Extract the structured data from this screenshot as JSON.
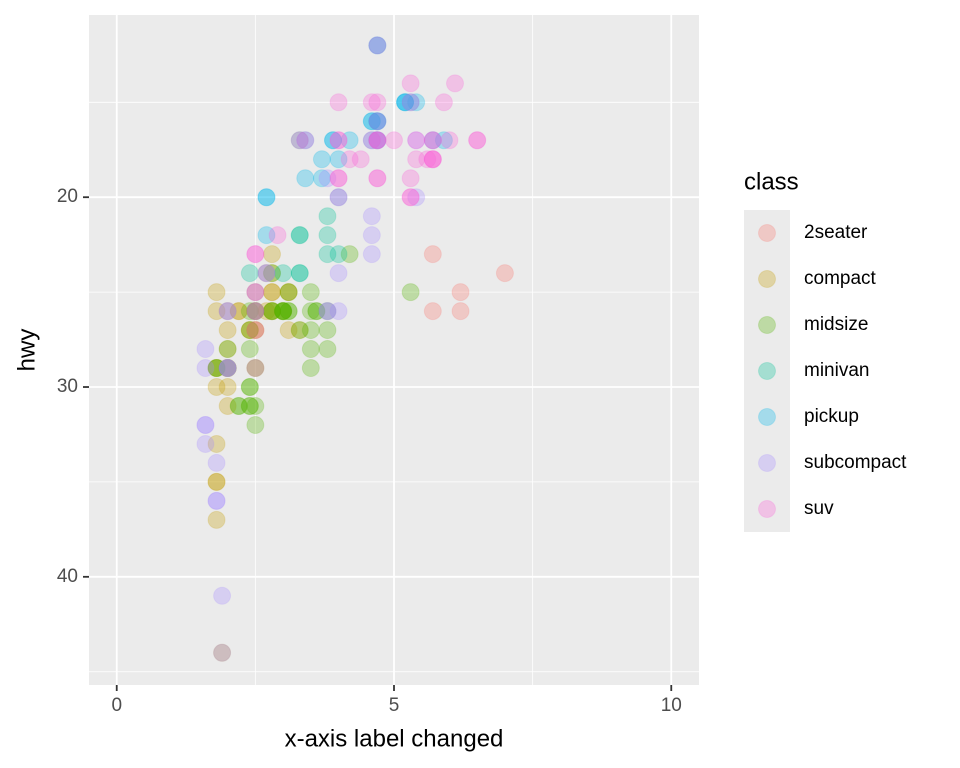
{
  "chart_data": {
    "type": "scatter",
    "x_label": "x-axis label changed",
    "y_label": "hwy",
    "legend_title": "class",
    "xlim": [
      -0.5,
      10.5
    ],
    "xticks": [
      0,
      5,
      10
    ],
    "x_minor_ticks": [
      2.5,
      7.5
    ],
    "ylim": [
      10.4,
      45.7
    ],
    "y_reverse": true,
    "yticks": [
      20,
      30,
      40
    ],
    "y_minor_ticks": [
      15,
      25,
      35,
      45
    ],
    "grid": true,
    "legend_position": "right",
    "alpha": 0.3,
    "series": [
      {
        "name": "2seater",
        "color": "#F8766D",
        "x": [
          5.7,
          5.7,
          6.2,
          6.2,
          7.0
        ],
        "values": [
          26,
          23,
          26,
          25,
          24
        ]
      },
      {
        "name": "compact",
        "color": "#C49A00",
        "x": [
          1.8,
          1.8,
          2.0,
          2.0,
          2.8,
          2.8,
          3.1,
          1.8,
          1.8,
          2.0,
          2.0,
          2.8,
          2.8,
          3.1,
          3.1,
          1.9,
          2.0,
          2.0,
          2.0,
          2.0,
          2.5,
          2.5,
          2.8,
          2.8,
          1.8,
          1.8,
          1.8,
          1.8,
          1.8,
          2.2,
          2.2,
          2.4,
          2.4,
          3.0,
          2.5,
          2.5,
          2.5,
          2.5,
          2.7,
          2.7,
          3.3
        ],
        "values": [
          29,
          29,
          31,
          30,
          26,
          26,
          27,
          26,
          25,
          28,
          27,
          25,
          25,
          25,
          25,
          44,
          29,
          26,
          29,
          29,
          29,
          29,
          23,
          24,
          30,
          33,
          35,
          37,
          35,
          26,
          26,
          27,
          27,
          26,
          27,
          27,
          25,
          26,
          26,
          24,
          27
        ]
      },
      {
        "name": "midsize",
        "color": "#53B400",
        "x": [
          2.8,
          3.1,
          4.2,
          2.4,
          2.4,
          3.1,
          3.5,
          3.6,
          2.4,
          2.4,
          2.5,
          2.5,
          3.3,
          2.4,
          2.5,
          2.5,
          3.5,
          3.5,
          3.0,
          3.0,
          3.5,
          2.2,
          2.2,
          2.4,
          2.4,
          3.0,
          3.0,
          3.5,
          3.1,
          3.8,
          3.8,
          3.8,
          5.3,
          1.8,
          1.8,
          2.0,
          2.0,
          2.8,
          2.8,
          3.6
        ],
        "values": [
          24,
          25,
          23,
          27,
          30,
          26,
          29,
          26,
          26,
          28,
          26,
          26,
          27,
          30,
          31,
          32,
          27,
          26,
          26,
          26,
          25,
          31,
          31,
          31,
          31,
          26,
          26,
          28,
          26,
          26,
          27,
          28,
          25,
          29,
          29,
          28,
          29,
          26,
          26,
          26
        ]
      },
      {
        "name": "minivan",
        "color": "#00C094",
        "x": [
          2.4,
          3.0,
          3.3,
          3.3,
          3.3,
          3.3,
          3.3,
          3.8,
          3.8,
          3.8,
          4.0
        ],
        "values": [
          24,
          24,
          22,
          22,
          24,
          24,
          17,
          22,
          21,
          23,
          23
        ]
      },
      {
        "name": "pickup",
        "color": "#00B6EB",
        "x": [
          3.7,
          3.7,
          3.9,
          3.9,
          4.7,
          4.7,
          4.7,
          5.2,
          5.2,
          5.9,
          4.7,
          4.7,
          4.7,
          5.2,
          5.7,
          4.2,
          4.6,
          4.6,
          4.6,
          5.4,
          2.7,
          2.7,
          2.7,
          3.4,
          3.4,
          4.0,
          4.0,
          4.7,
          5.3
        ],
        "values": [
          19,
          18,
          17,
          17,
          16,
          12,
          17,
          15,
          15,
          17,
          12,
          17,
          16,
          15,
          17,
          17,
          16,
          16,
          17,
          15,
          20,
          22,
          20,
          17,
          19,
          18,
          20,
          16,
          15
        ]
      },
      {
        "name": "subcompact",
        "color": "#A58AFF",
        "x": [
          1.6,
          1.6,
          1.6,
          1.6,
          1.6,
          1.8,
          1.8,
          1.8,
          2.0,
          3.8,
          3.8,
          4.0,
          4.0,
          4.6,
          4.6,
          5.4,
          2.0,
          2.0,
          2.7,
          2.7,
          1.9,
          1.9,
          2.0,
          2.0,
          2.5,
          2.5,
          2.5,
          4.6,
          5.4,
          3.8
        ],
        "values": [
          28,
          33,
          32,
          29,
          32,
          36,
          36,
          34,
          29,
          26,
          26,
          26,
          24,
          23,
          22,
          20,
          26,
          29,
          24,
          24,
          44,
          41,
          29,
          26,
          29,
          26,
          25,
          21,
          17,
          19
        ]
      },
      {
        "name": "suv",
        "color": "#FB61D7",
        "x": [
          5.3,
          5.3,
          5.3,
          5.7,
          6.0,
          5.7,
          6.5,
          5.3,
          4.7,
          4.7,
          4.7,
          4.7,
          5.7,
          5.9,
          4.7,
          5.7,
          6.1,
          4.0,
          4.0,
          4.0,
          4.6,
          5.4,
          4.0,
          4.2,
          4.4,
          4.6,
          3.3,
          4.0,
          5.6,
          2.5,
          2.9,
          3.4,
          4.0,
          4.7,
          2.5,
          2.5,
          2.5,
          2.5,
          5.4,
          5.7,
          6.5,
          5.3,
          5.0,
          4.7,
          4.7
        ],
        "values": [
          20,
          15,
          20,
          17,
          17,
          17,
          17,
          19,
          17,
          12,
          17,
          16,
          18,
          15,
          19,
          18,
          14,
          19,
          19,
          17,
          17,
          17,
          15,
          18,
          18,
          15,
          17,
          17,
          18,
          23,
          22,
          17,
          20,
          19,
          25,
          27,
          26,
          23,
          18,
          18,
          17,
          14,
          17,
          17,
          15
        ]
      }
    ]
  }
}
